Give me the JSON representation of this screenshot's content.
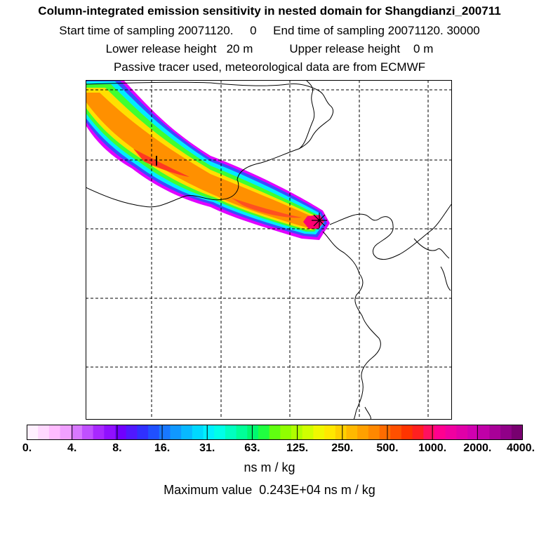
{
  "titles": {
    "main": "Column-integrated emission sensitivity in nested domain for Shangdianzi_200711",
    "sampling": "Start time of sampling 20071120.     0     End time of sampling 20071120. 30000",
    "release": "Lower release height   20 m           Upper release height    0 m",
    "tracer": "Passive tracer used, meteorological data are from ECMWF"
  },
  "colorbar": {
    "units": "ns m / kg",
    "tick_labels": [
      "0.",
      "4.",
      "8.",
      "16.",
      "31.",
      "63.",
      "125.",
      "250.",
      "500.",
      "1000.",
      "2000.",
      "4000."
    ],
    "colors": [
      "#fff0ff",
      "#ffd8ff",
      "#ffbcff",
      "#f0a0ff",
      "#d878ff",
      "#c050ff",
      "#a828ff",
      "#9010ff",
      "#7000ff",
      "#5018ff",
      "#3030ff",
      "#2050ff",
      "#1878ff",
      "#1098ff",
      "#08b8ff",
      "#00d8ff",
      "#00f0ff",
      "#00ffe8",
      "#00ffc0",
      "#00ff98",
      "#00f870",
      "#20ff40",
      "#60ff10",
      "#90ff00",
      "#b0ff00",
      "#d0ff00",
      "#f0f800",
      "#ffe800",
      "#ffd000",
      "#ffb800",
      "#ffa000",
      "#ff8800",
      "#ff6c00",
      "#ff5000",
      "#ff3400",
      "#ff2020",
      "#ff1060",
      "#ff0090",
      "#f000a0",
      "#e000a8",
      "#d000b0",
      "#c000a8",
      "#a80098",
      "#900088",
      "#780070"
    ]
  },
  "maximum": "Maximum value  0.243E+04 ns m / kg",
  "plume": {
    "peak_value": 2430,
    "receptor_marker": "asterisk"
  }
}
